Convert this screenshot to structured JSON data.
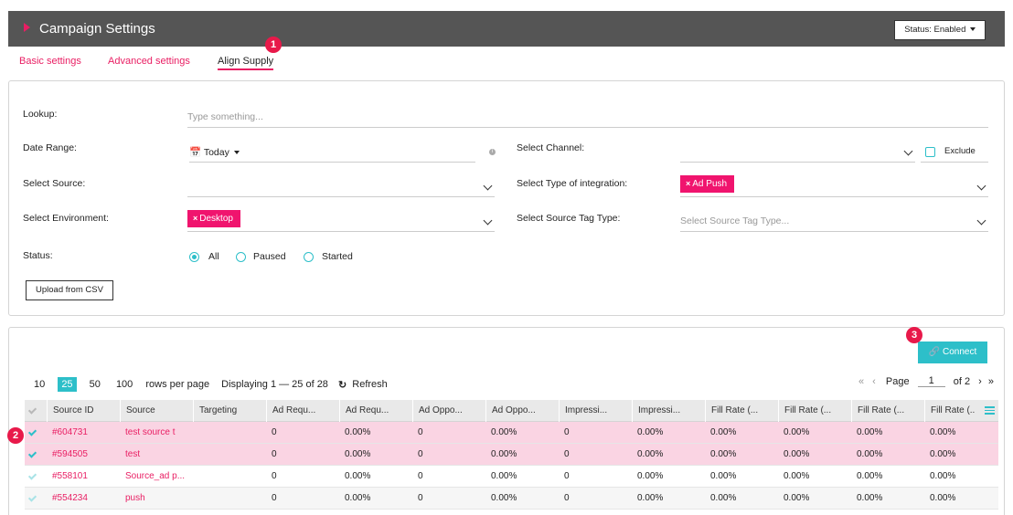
{
  "header": {
    "title": "Campaign Settings",
    "status_button": "Status: Enabled"
  },
  "tabs": [
    {
      "label": "Basic settings"
    },
    {
      "label": "Advanced settings"
    },
    {
      "label": "Align Supply"
    }
  ],
  "badges": [
    "1",
    "2",
    "3"
  ],
  "filters": {
    "lookup_label": "Lookup:",
    "lookup_placeholder": "Type something...",
    "date_range_label": "Date Range:",
    "date_range_value": "Today",
    "select_source_label": "Select Source:",
    "select_environment_label": "Select Environment:",
    "environment_chip": "Desktop",
    "status_label": "Status:",
    "status_options": [
      "All",
      "Paused",
      "Started"
    ],
    "select_channel_label": "Select Channel:",
    "exclude_label": "Exclude",
    "integration_label": "Select Type of integration:",
    "integration_chip": "Ad Push",
    "source_tag_label": "Select Source Tag Type:",
    "source_tag_placeholder": "Select Source Tag Type...",
    "upload_button": "Upload from CSV"
  },
  "toolbar": {
    "connect_label": "Connect",
    "rows_options": [
      "10",
      "25",
      "50",
      "100"
    ],
    "rows_per_page_label": "rows per page",
    "displaying": "Displaying 1 — 25 of 28",
    "refresh_label": "Refresh",
    "page_label": "Page",
    "page_value": "1",
    "of_label": "of 2"
  },
  "table": {
    "columns": [
      "Source ID",
      "Source",
      "Targeting",
      "Ad Requ...",
      "Ad Requ...",
      "Ad Oppo...",
      "Ad Oppo...",
      "Impressi...",
      "Impressi...",
      "Fill Rate (...",
      "Fill Rate (...",
      "Fill Rate (...",
      "Fill Rate (..."
    ],
    "rows": [
      {
        "id": "#604731",
        "source": "test source t",
        "targeting": "",
        "values": [
          "0",
          "0.00%",
          "0",
          "0.00%",
          "0",
          "0.00%",
          "0.00%",
          "0.00%",
          "0.00%",
          "0.00%"
        ]
      },
      {
        "id": "#594505",
        "source": "test",
        "targeting": "",
        "values": [
          "0",
          "0.00%",
          "0",
          "0.00%",
          "0",
          "0.00%",
          "0.00%",
          "0.00%",
          "0.00%",
          "0.00%"
        ]
      },
      {
        "id": "#558101",
        "source": "Source_ad p...",
        "targeting": "",
        "values": [
          "0",
          "0.00%",
          "0",
          "0.00%",
          "0",
          "0.00%",
          "0.00%",
          "0.00%",
          "0.00%",
          "0.00%"
        ]
      },
      {
        "id": "#554234",
        "source": "push",
        "targeting": "",
        "values": [
          "0",
          "0.00%",
          "0",
          "0.00%",
          "0",
          "0.00%",
          "0.00%",
          "0.00%",
          "0.00%",
          "0.00%"
        ]
      }
    ]
  },
  "colors": {
    "accent": "#e91e63",
    "teal": "#2dbfc9",
    "header_bg": "#555555",
    "selected_row": "#fad4e3"
  }
}
